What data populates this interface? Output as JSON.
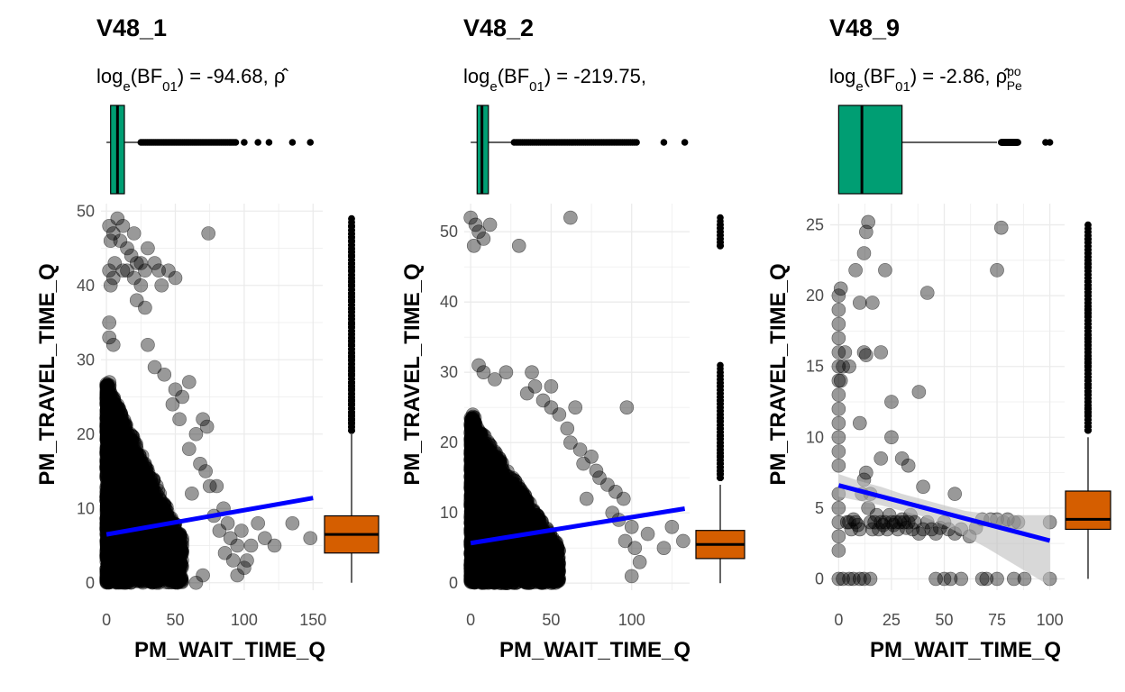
{
  "colors": {
    "point": "#000000",
    "regression_line": "#0000FF",
    "confidence_band": "#BEBEBE",
    "x_marginal_box": "#009E73",
    "y_marginal_box": "#D55E00",
    "grid": "#EBEBEB",
    "tick_text": "#4D4D4D"
  },
  "chart_data": [
    {
      "type": "scatter",
      "title": "V48_1",
      "subtitle_html": "log<tspan baseline-shift=\"sub\" font-size=\"15\">e</tspan>(BF<tspan baseline-shift=\"sub\" font-size=\"15\">01</tspan>) = -94.68, ρ̂",
      "xlabel": "PM_WAIT_TIME_Q",
      "ylabel": "PM_TRAVEL_TIME_Q",
      "xlim": [
        -4,
        157
      ],
      "ylim": [
        -1,
        51
      ],
      "x_ticks": [
        0,
        50,
        100,
        150
      ],
      "y_ticks": [
        0,
        10,
        20,
        30,
        40,
        50
      ],
      "grid": true,
      "legend": "none",
      "dense_region": {
        "xmax": 55,
        "ymax": 27
      },
      "points": [
        [
          2,
          48
        ],
        [
          3,
          46
        ],
        [
          5,
          47
        ],
        [
          8,
          49
        ],
        [
          10,
          46
        ],
        [
          12,
          48
        ],
        [
          15,
          45
        ],
        [
          18,
          44
        ],
        [
          20,
          47
        ],
        [
          22,
          43
        ],
        [
          25,
          43
        ],
        [
          28,
          42
        ],
        [
          2,
          42
        ],
        [
          3,
          40
        ],
        [
          5,
          41
        ],
        [
          6,
          43
        ],
        [
          12,
          42
        ],
        [
          15,
          42
        ],
        [
          20,
          41
        ],
        [
          30,
          45
        ],
        [
          35,
          43
        ],
        [
          38,
          42
        ],
        [
          45,
          42
        ],
        [
          50,
          41
        ],
        [
          40,
          40
        ],
        [
          25,
          40
        ],
        [
          22,
          38
        ],
        [
          28,
          37
        ],
        [
          30,
          32
        ],
        [
          2,
          33
        ],
        [
          5,
          32
        ],
        [
          2,
          35
        ],
        [
          35,
          29
        ],
        [
          42,
          28
        ],
        [
          50,
          26
        ],
        [
          60,
          27
        ],
        [
          55,
          25
        ],
        [
          48,
          24
        ],
        [
          53,
          22
        ],
        [
          65,
          20
        ],
        [
          70,
          22
        ],
        [
          73,
          21
        ],
        [
          60,
          18
        ],
        [
          68,
          16
        ],
        [
          72,
          15
        ],
        [
          75,
          13
        ],
        [
          80,
          13
        ],
        [
          62,
          12
        ],
        [
          85,
          10
        ],
        [
          78,
          9
        ],
        [
          88,
          8
        ],
        [
          82,
          7
        ],
        [
          90,
          6
        ],
        [
          95,
          5
        ],
        [
          98,
          7
        ],
        [
          105,
          5
        ],
        [
          102,
          3
        ],
        [
          100,
          2
        ],
        [
          95,
          1
        ],
        [
          115,
          6
        ],
        [
          122,
          5
        ],
        [
          135,
          8
        ],
        [
          148,
          6
        ],
        [
          74,
          47
        ],
        [
          110,
          8
        ],
        [
          92,
          3
        ],
        [
          86,
          4
        ],
        [
          70,
          1
        ],
        [
          65,
          0
        ]
      ],
      "regression": {
        "x0": 0,
        "y0": 6.5,
        "x1": 150,
        "y1": 11.4
      },
      "x_box": {
        "min": 0,
        "q1": 3,
        "median": 8,
        "q3": 13,
        "max": 25,
        "outliers_from": 25,
        "outliers_to": 95,
        "extra_outliers": [
          100,
          110,
          118,
          135,
          148
        ]
      },
      "y_box": {
        "min": 0,
        "q1": 4,
        "median": 6.5,
        "q3": 9,
        "max": 20,
        "outliers": [
          20.5,
          22,
          24,
          26,
          28,
          30,
          32,
          35,
          38,
          40,
          42,
          44,
          46,
          48,
          49
        ]
      }
    },
    {
      "type": "scatter",
      "title": "V48_2",
      "subtitle_html": "log<tspan baseline-shift=\"sub\" font-size=\"15\">e</tspan>(BF<tspan baseline-shift=\"sub\" font-size=\"15\">01</tspan>) = -219.75,",
      "xlabel": "PM_WAIT_TIME_Q",
      "ylabel": "PM_TRAVEL_TIME_Q",
      "xlim": [
        -4,
        136
      ],
      "ylim": [
        -1,
        54
      ],
      "x_ticks": [
        0,
        50,
        100
      ],
      "y_ticks": [
        0,
        10,
        20,
        30,
        40,
        50
      ],
      "grid": true,
      "legend": "none",
      "dense_region": {
        "xmax": 55,
        "ymax": 24
      },
      "points": [
        [
          0,
          52
        ],
        [
          2,
          48
        ],
        [
          3,
          51
        ],
        [
          5,
          50
        ],
        [
          8,
          49
        ],
        [
          12,
          51
        ],
        [
          30,
          48
        ],
        [
          62,
          52
        ],
        [
          5,
          31
        ],
        [
          8,
          30
        ],
        [
          15,
          29
        ],
        [
          22,
          30
        ],
        [
          38,
          30
        ],
        [
          40,
          28
        ],
        [
          35,
          27
        ],
        [
          45,
          26
        ],
        [
          50,
          25
        ],
        [
          55,
          24
        ],
        [
          60,
          22
        ],
        [
          62,
          20
        ],
        [
          68,
          19
        ],
        [
          75,
          18
        ],
        [
          70,
          17
        ],
        [
          78,
          16
        ],
        [
          80,
          15
        ],
        [
          85,
          14
        ],
        [
          90,
          13
        ],
        [
          72,
          12
        ],
        [
          95,
          12
        ],
        [
          88,
          10
        ],
        [
          92,
          9
        ],
        [
          100,
          8
        ],
        [
          96,
          6
        ],
        [
          102,
          5
        ],
        [
          105,
          3
        ],
        [
          100,
          1
        ],
        [
          110,
          7
        ],
        [
          120,
          5
        ],
        [
          125,
          8
        ],
        [
          132,
          6
        ],
        [
          97,
          25
        ],
        [
          65,
          25
        ],
        [
          50,
          28
        ]
      ],
      "regression": {
        "x0": 0,
        "y0": 5.7,
        "x1": 133,
        "y1": 10.6
      },
      "x_box": {
        "min": 0,
        "q1": 4,
        "median": 7,
        "q3": 11,
        "max": 26,
        "outliers_from": 27,
        "outliers_to": 103,
        "extra_outliers": [
          120,
          133
        ]
      },
      "y_box": {
        "min": 0,
        "q1": 3.5,
        "median": 5.5,
        "q3": 7.5,
        "max": 14,
        "outliers": [
          15,
          16,
          18,
          20,
          22,
          24,
          26,
          28,
          30,
          31,
          48,
          49,
          50,
          51,
          52
        ]
      }
    },
    {
      "type": "scatter",
      "title": "V48_9",
      "subtitle_html": "log<tspan baseline-shift=\"sub\" font-size=\"15\">e</tspan>(BF<tspan baseline-shift=\"sub\" font-size=\"15\">01</tspan>) = -2.86, ρ̂<tspan baseline-shift=\"super\" font-size=\"14\">po</tspan><tspan dx=\"-16\" baseline-shift=\"sub\" font-size=\"14\">Pe</tspan>",
      "xlabel": "PM_WAIT_TIME_Q",
      "ylabel": "PM_TRAVEL_TIME_Q",
      "xlim": [
        -4,
        107
      ],
      "ylim": [
        -0.8,
        26.5
      ],
      "x_ticks": [
        0,
        25,
        50,
        75,
        100
      ],
      "y_ticks": [
        0,
        5,
        10,
        15,
        20,
        25
      ],
      "grid": true,
      "legend": "none",
      "points": [
        [
          0,
          0
        ],
        [
          2,
          0
        ],
        [
          5,
          0
        ],
        [
          7,
          0
        ],
        [
          10,
          0
        ],
        [
          12,
          0
        ],
        [
          15,
          0
        ],
        [
          46,
          0
        ],
        [
          50,
          0
        ],
        [
          53,
          0
        ],
        [
          58,
          0
        ],
        [
          68,
          0
        ],
        [
          70,
          0
        ],
        [
          75,
          0
        ],
        [
          83,
          0
        ],
        [
          88,
          0
        ],
        [
          100,
          0
        ],
        [
          0,
          2
        ],
        [
          0,
          3
        ],
        [
          0,
          4
        ],
        [
          0,
          5
        ],
        [
          0,
          6
        ],
        [
          0,
          8
        ],
        [
          0,
          9
        ],
        [
          0,
          10
        ],
        [
          0,
          11
        ],
        [
          0,
          12
        ],
        [
          0,
          13
        ],
        [
          0,
          14
        ],
        [
          0,
          15
        ],
        [
          0,
          16
        ],
        [
          0,
          17
        ],
        [
          0,
          18
        ],
        [
          0,
          19
        ],
        [
          0,
          20
        ],
        [
          1,
          20.5
        ],
        [
          1,
          14
        ],
        [
          2,
          15
        ],
        [
          3,
          16
        ],
        [
          5,
          15
        ],
        [
          4,
          4
        ],
        [
          5,
          4
        ],
        [
          6,
          3.5
        ],
        [
          7,
          4.2
        ],
        [
          8,
          4
        ],
        [
          9,
          3.8
        ],
        [
          10,
          3.5
        ],
        [
          11,
          6
        ],
        [
          12,
          7
        ],
        [
          13,
          7.5
        ],
        [
          14,
          5
        ],
        [
          15,
          4
        ],
        [
          16,
          3.5
        ],
        [
          17,
          4
        ],
        [
          18,
          4.5
        ],
        [
          19,
          3.5
        ],
        [
          20,
          4
        ],
        [
          21,
          3.8
        ],
        [
          22,
          4
        ],
        [
          23,
          3.5
        ],
        [
          24,
          4.5
        ],
        [
          25,
          4
        ],
        [
          26,
          3.8
        ],
        [
          27,
          4
        ],
        [
          28,
          3.5
        ],
        [
          29,
          4
        ],
        [
          30,
          4.2
        ],
        [
          31,
          4
        ],
        [
          32,
          3.6
        ],
        [
          33,
          4
        ],
        [
          34,
          4.5
        ],
        [
          35,
          3.5
        ],
        [
          36,
          4
        ],
        [
          38,
          3.2
        ],
        [
          40,
          3.5
        ],
        [
          42,
          4
        ],
        [
          44,
          3.5
        ],
        [
          46,
          3.2
        ],
        [
          48,
          3.6
        ],
        [
          50,
          4
        ],
        [
          52,
          3.5
        ],
        [
          55,
          3.2
        ],
        [
          58,
          3.5
        ],
        [
          62,
          3
        ],
        [
          65,
          3.6
        ],
        [
          68,
          4.2
        ],
        [
          72,
          4.2
        ],
        [
          75,
          4.2
        ],
        [
          78,
          4
        ],
        [
          80,
          4.2
        ],
        [
          83,
          4
        ],
        [
          85,
          4
        ],
        [
          100,
          4
        ],
        [
          8,
          21.8
        ],
        [
          12,
          23
        ],
        [
          14,
          25.2
        ],
        [
          13,
          24.5
        ],
        [
          16,
          19.5
        ],
        [
          22,
          21.8
        ],
        [
          10,
          11
        ],
        [
          25,
          10
        ],
        [
          20,
          8.5
        ],
        [
          38,
          13.2
        ],
        [
          42,
          20.2
        ],
        [
          75,
          21.8
        ],
        [
          77,
          24.8
        ],
        [
          25,
          12.5
        ],
        [
          15,
          6
        ],
        [
          30,
          8.5
        ],
        [
          33,
          8
        ],
        [
          40,
          6.5
        ],
        [
          55,
          6
        ],
        [
          12,
          16
        ],
        [
          20,
          16
        ],
        [
          13,
          15.8
        ],
        [
          10,
          19.5
        ]
      ],
      "regression": {
        "x0": 0,
        "y0": 6.6,
        "x1": 100,
        "y1": 2.7
      },
      "ci_band": {
        "x": [
          0,
          10,
          20,
          30,
          40,
          50,
          60,
          70,
          80,
          90,
          100
        ],
        "lower": [
          5.8,
          5.5,
          5.2,
          4.8,
          4.4,
          3.8,
          3.0,
          2.2,
          1.3,
          0.4,
          -0.5
        ],
        "upper": [
          7.4,
          6.9,
          6.5,
          6.0,
          5.6,
          5.2,
          4.8,
          4.6,
          4.5,
          4.5,
          4.5
        ]
      },
      "x_box": {
        "min": 0,
        "q1": 0,
        "median": 11,
        "q3": 30,
        "max": 75,
        "outliers_from": 77,
        "outliers_to": 85,
        "extra_outliers": [
          98,
          100
        ]
      },
      "y_box": {
        "min": 0,
        "q1": 3.5,
        "median": 4.2,
        "q3": 6.2,
        "max": 10,
        "outliers": [
          10.5,
          11,
          12,
          13,
          14,
          15,
          15.5,
          16,
          17,
          18,
          19,
          20,
          21,
          22,
          23,
          24,
          25
        ]
      }
    }
  ]
}
